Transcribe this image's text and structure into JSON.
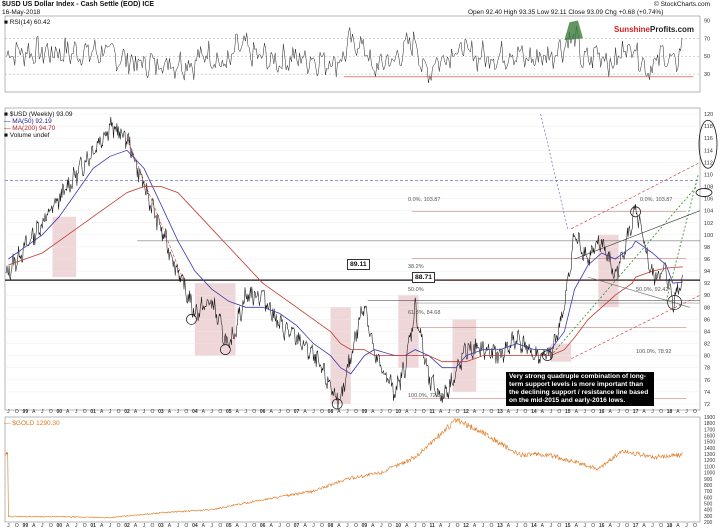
{
  "header": {
    "title": "$USD US Dollar Index - Cash Settle (EOD) ICE",
    "date": "16-May-2018",
    "ohlc": "Open 92.40  High 93.35  Low 92.11  Close 93.09  Chg +0.68 (+0.74%)",
    "credit": "© StockCharts.com",
    "logo_part1": "Sunshine",
    "logo_part2": "Profits.com"
  },
  "rsi_panel": {
    "legend": "■ RSI(14) 60.42",
    "ticks": [
      "90",
      "70",
      "50",
      "30"
    ]
  },
  "price_panel": {
    "legend_main": "■ $USD (Weekly) 93.09",
    "legend_ma50": "— MA(50) 92.19",
    "legend_ma200": "— MA(200) 94.70",
    "legend_vol": "■ Volume undef",
    "ticks": [
      "120",
      "118",
      "116",
      "114",
      "112",
      "110",
      "108",
      "106",
      "104",
      "102",
      "100",
      "98",
      "96",
      "94",
      "92",
      "90",
      "88",
      "86",
      "84",
      "82",
      "80",
      "78",
      "76",
      "74",
      "72"
    ],
    "label_8911": "89.11",
    "label_8871": "88.71",
    "fib_top_left": "0.0%, 103.87",
    "fib_top_right": "0.0%, 103.87",
    "fib_382": "38.2%",
    "fib_50": "50.0%",
    "fib_618": "61.8%, 84.68",
    "fib_100_left": "100.0%, 72.88",
    "fib_100_right": "100.0%, 78.92",
    "fib_mid": "50.0%, 92.42",
    "note": "Very strong quadruple combination of long-term support levels is more important than the declining support / resistance line based on the mid-2015 and early-2016 lows."
  },
  "gold_panel": {
    "legend": "— $GOLD 1290.30",
    "ticks": [
      "1900",
      "1800",
      "1700",
      "1600",
      "1500",
      "1400",
      "1300",
      "1200",
      "1100",
      "1000",
      "900",
      "800",
      "700",
      "600",
      "500",
      "400",
      "300",
      "200"
    ]
  },
  "x_axis_year_labels": [
    "99",
    "00",
    "01",
    "02",
    "03",
    "04",
    "05",
    "06",
    "07",
    "08",
    "09",
    "10",
    "11",
    "12",
    "13",
    "14",
    "15",
    "16",
    "17",
    "18"
  ],
  "chart_data": [
    {
      "type": "line",
      "title": "RSI(14)",
      "ylim": [
        10,
        95
      ],
      "reference_lines": [
        70,
        50,
        30
      ],
      "last_value": 60.42
    },
    {
      "type": "line",
      "title": "$USD (Weekly)",
      "x": [
        1998.5,
        1999.0,
        1999.5,
        2000.0,
        2000.5,
        2001.0,
        2001.5,
        2002.0,
        2002.5,
        2003.0,
        2003.5,
        2004.0,
        2004.5,
        2005.0,
        2005.5,
        2006.0,
        2006.5,
        2007.0,
        2007.5,
        2008.0,
        2008.3,
        2008.6,
        2009.0,
        2009.3,
        2009.9,
        2010.2,
        2010.5,
        2010.9,
        2011.3,
        2011.7,
        2012.0,
        2012.5,
        2013.0,
        2013.5,
        2014.0,
        2014.5,
        2014.9,
        2015.2,
        2015.6,
        2016.0,
        2016.4,
        2016.9,
        2017.0,
        2017.5,
        2017.9,
        2018.1,
        2018.4
      ],
      "series": [
        {
          "name": "$USD",
          "values": [
            94,
            98,
            102,
            106,
            110,
            114,
            118,
            116,
            108,
            101,
            94,
            87,
            89,
            81,
            90,
            90,
            85,
            83,
            80,
            75,
            72,
            80,
            89,
            80,
            74,
            78,
            88,
            76,
            73,
            77,
            81,
            81,
            80,
            83,
            80,
            80,
            88,
            100,
            96,
            99,
            93,
            102,
            104,
            93,
            94,
            89,
            93.09
          ]
        },
        {
          "name": "MA(50)",
          "values": [
            96,
            98,
            100,
            103,
            107,
            111,
            113,
            114,
            111,
            105,
            99,
            94,
            91,
            89,
            88,
            88,
            87,
            85,
            82,
            80,
            78,
            77,
            80,
            81,
            80,
            80,
            81,
            80,
            78,
            78,
            80,
            81,
            81,
            82,
            81,
            81,
            84,
            91,
            95,
            97,
            96,
            98,
            99,
            97,
            95,
            92,
            92.19
          ]
        },
        {
          "name": "MA(200)",
          "values": [
            95,
            96,
            97,
            99,
            101,
            103,
            105,
            107,
            108,
            108,
            107,
            104,
            101,
            98,
            95,
            92,
            90,
            88,
            86,
            84,
            82,
            81,
            81,
            80,
            80,
            80,
            80,
            80,
            79,
            79,
            79,
            80,
            80,
            80,
            80,
            80,
            81,
            83,
            86,
            88,
            90,
            92,
            93,
            94,
            94.5,
            94.6,
            94.7
          ]
        }
      ],
      "horizontal_levels": [
        109,
        99,
        92.5,
        89.11,
        88.71
      ],
      "ylim": [
        71,
        121
      ],
      "xlim": [
        1998.4,
        2018.9
      ]
    },
    {
      "type": "line",
      "title": "$GOLD",
      "x": [
        1998.5,
        2000.0,
        2001.5,
        2003.0,
        2004.5,
        2006.0,
        2007.5,
        2008.5,
        2009.5,
        2010.5,
        2011.7,
        2012.5,
        2013.5,
        2014.5,
        2015.9,
        2016.6,
        2017.5,
        2018.4
      ],
      "series": [
        {
          "name": "$GOLD",
          "values": [
            290,
            285,
            270,
            350,
            400,
            560,
            700,
            900,
            1000,
            1250,
            1850,
            1650,
            1300,
            1280,
            1060,
            1350,
            1250,
            1290.3
          ]
        }
      ],
      "ylim": [
        200,
        1900
      ],
      "xlim": [
        1998.4,
        2018.9
      ]
    }
  ]
}
